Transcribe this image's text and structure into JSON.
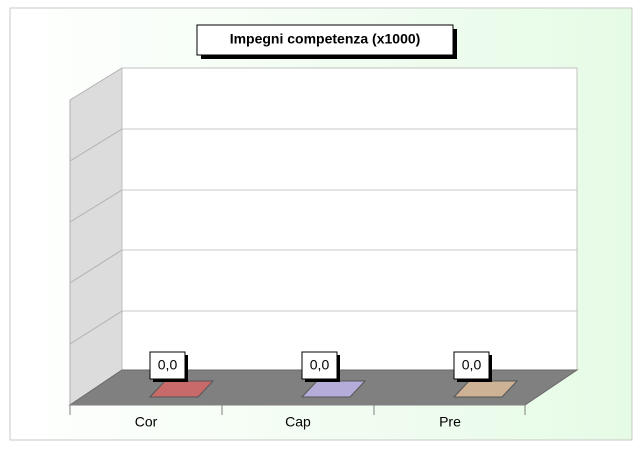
{
  "chart_data": {
    "type": "bar",
    "title": "Impegni competenza (x1000)",
    "categories": [
      "Cor",
      "Cap",
      "Pre"
    ],
    "values": [
      0,
      0,
      0
    ],
    "value_labels": [
      "0,0",
      "0,0",
      "0,0"
    ],
    "colors": [
      "#c96a6a",
      "#b5acd9",
      "#cdb295"
    ]
  }
}
